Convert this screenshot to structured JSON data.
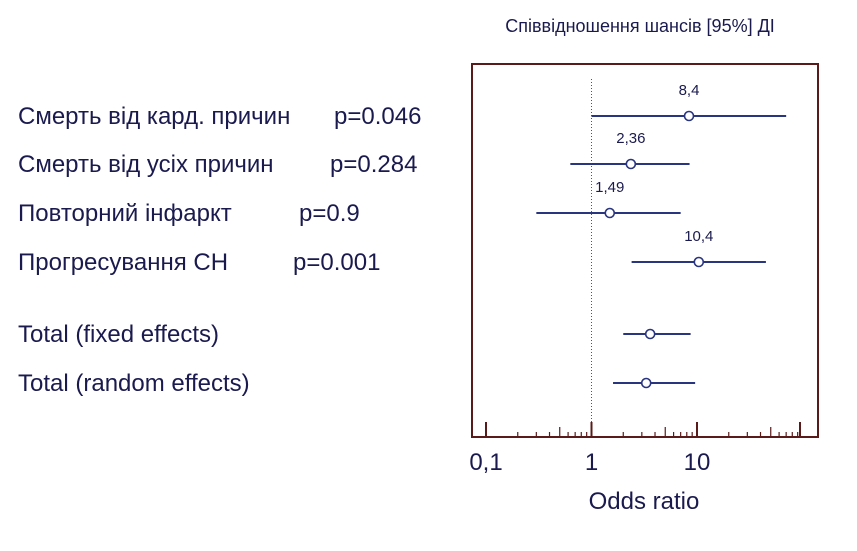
{
  "chart_data": {
    "type": "forest",
    "title": "Співвідношення шансів [95%] ДІ",
    "xlabel": "Odds ratio",
    "x_scale": "log",
    "xlim": [
      0.1,
      20
    ],
    "reference_line": 1,
    "x_ticks": [
      "0,1",
      "1",
      "10"
    ],
    "rows": [
      {
        "label": "Смерть від кард. причин",
        "p": "p=0.046",
        "or": 8.4,
        "ci": [
          1.0,
          70.0
        ],
        "data_label": "8,4"
      },
      {
        "label": "Смерть від усіх причин",
        "p": "p=0.284",
        "or": 2.36,
        "ci": [
          0.63,
          8.5
        ],
        "data_label": "2,36"
      },
      {
        "label": "Повторний інфаркт",
        "p": "p=0.9",
        "or": 1.49,
        "ci": [
          0.3,
          7.0
        ],
        "data_label": "1,49"
      },
      {
        "label": "Прогресування СН",
        "p": "p=0.001",
        "or": 10.4,
        "ci": [
          2.4,
          45.0
        ],
        "data_label": "10,4"
      },
      {
        "label": "Total (fixed effects)",
        "p": "",
        "or": 3.6,
        "ci": [
          2.0,
          8.7
        ],
        "data_label": ""
      },
      {
        "label": "Total (random effects)",
        "p": "",
        "or": 3.3,
        "ci": [
          1.6,
          9.6
        ],
        "data_label": ""
      }
    ]
  },
  "colors": {
    "frame": "#5b1a1a",
    "series": "#2a3580",
    "text": "#1a1a4e",
    "refline": "#555555"
  }
}
